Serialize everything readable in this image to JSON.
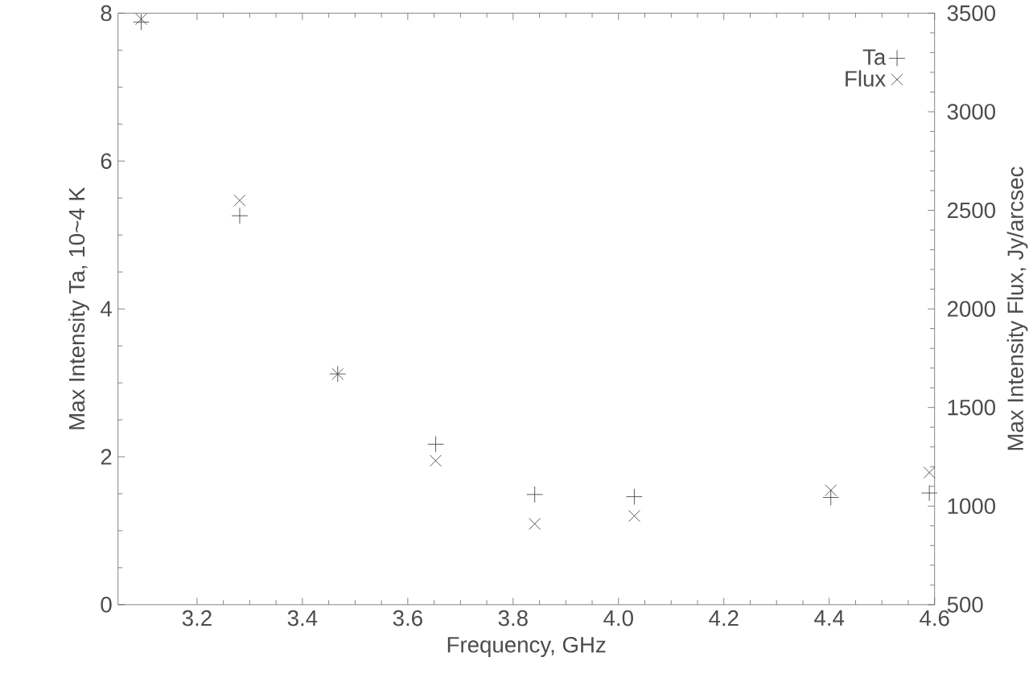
{
  "chart_data": {
    "type": "scatter",
    "xlabel": "Frequency, GHz",
    "ylabel": "Max Intensity Ta, 10~4 K",
    "y2label": "Max Intensity Flux, Jy/arcsec",
    "x": [
      3.094,
      3.281,
      3.467,
      3.653,
      3.841,
      4.03,
      4.403,
      4.59
    ],
    "series": [
      {
        "name": "Ta",
        "color": "#333333",
        "marker": "plus",
        "values": [
          7.88,
          5.26,
          3.12,
          2.17,
          1.49,
          1.46,
          1.45,
          1.51
        ]
      },
      {
        "name": "Flux",
        "color": "#333333",
        "marker": "cross",
        "axis": "y2",
        "values": [
          3470,
          2550,
          1670,
          1230,
          910,
          950,
          1080,
          1170
        ]
      }
    ],
    "xlim": [
      3.05,
      4.6
    ],
    "xticks": [
      3.2,
      3.4,
      3.6,
      3.8,
      {
        "value": 4,
        "label": "4.0"
      },
      4.2,
      4.4,
      4.6
    ],
    "ylim": [
      0,
      8
    ],
    "yticks": [
      0,
      2,
      4,
      6,
      8
    ],
    "y2lim": [
      500,
      3500
    ],
    "y2ticks": [
      500,
      1000,
      1500,
      2000,
      2500,
      3000,
      3500
    ],
    "legend": "top right",
    "grid": false
  }
}
